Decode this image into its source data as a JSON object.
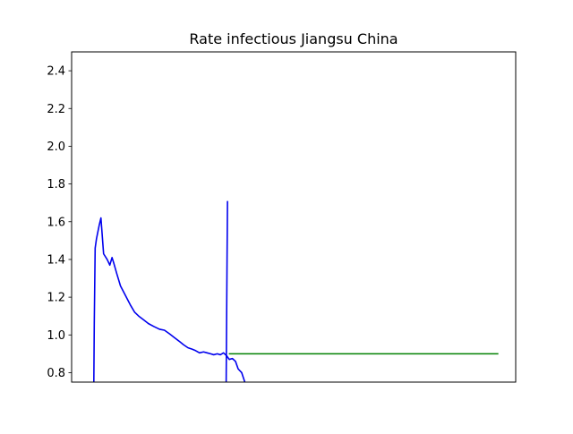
{
  "chart_data": {
    "type": "line",
    "title": "Rate infectious Jiangsu China",
    "xlabel": "",
    "ylabel": "",
    "xlim": [
      0,
      100
    ],
    "ylim": [
      0.75,
      2.5
    ],
    "yticks": [
      0.8,
      1.0,
      1.2,
      1.4,
      1.6,
      1.8,
      2.0,
      2.2,
      2.4
    ],
    "ytick_labels": [
      "0.8",
      "1.0",
      "1.2",
      "1.4",
      "1.6",
      "1.8",
      "2.0",
      "2.2",
      "2.4"
    ],
    "grid": false,
    "legend": "none",
    "colors": {
      "blue": "#0000ee",
      "green": "#008000",
      "axes": "#000000",
      "background": "#ffffff"
    },
    "series": [
      {
        "color": "#0000ee",
        "x": [
          5.0,
          5.1,
          5.3,
          5.6,
          6.2,
          6.6,
          7.2,
          8.0,
          8.6,
          9.1,
          9.5,
          10.1,
          11.0,
          12.1,
          13.2,
          14.2,
          15.1,
          16.2,
          17.3,
          18.5,
          19.8,
          20.9,
          22.1,
          23.2,
          24.3,
          25.2,
          26.2,
          27.1,
          27.9,
          28.8,
          29.7,
          30.5,
          31.3,
          32.0,
          32.8,
          33.5,
          34.2,
          34.9,
          35.5,
          36.2,
          36.9,
          37.5,
          38.3,
          39.0,
          39.8,
          40.3
        ],
        "y": [
          0.75,
          1.06,
          1.46,
          1.51,
          1.58,
          1.62,
          1.43,
          1.4,
          1.37,
          1.41,
          1.38,
          1.33,
          1.26,
          1.21,
          1.16,
          1.12,
          1.1,
          1.08,
          1.06,
          1.045,
          1.03,
          1.025,
          1.005,
          0.985,
          0.965,
          0.948,
          0.932,
          0.925,
          0.917,
          0.905,
          0.91,
          0.905,
          0.9,
          0.895,
          0.9,
          0.895,
          0.905,
          0.89,
          0.87,
          0.875,
          0.86,
          0.82,
          0.8,
          0.75,
          0.72,
          0.7
        ]
      },
      {
        "color": "#0000ee",
        "x": [
          34.8,
          35.0,
          35.1
        ],
        "y": [
          0.75,
          1.4,
          1.71
        ]
      },
      {
        "color": "#008000",
        "x": [
          35.4,
          96.1
        ],
        "y": [
          0.9,
          0.9
        ]
      }
    ]
  }
}
